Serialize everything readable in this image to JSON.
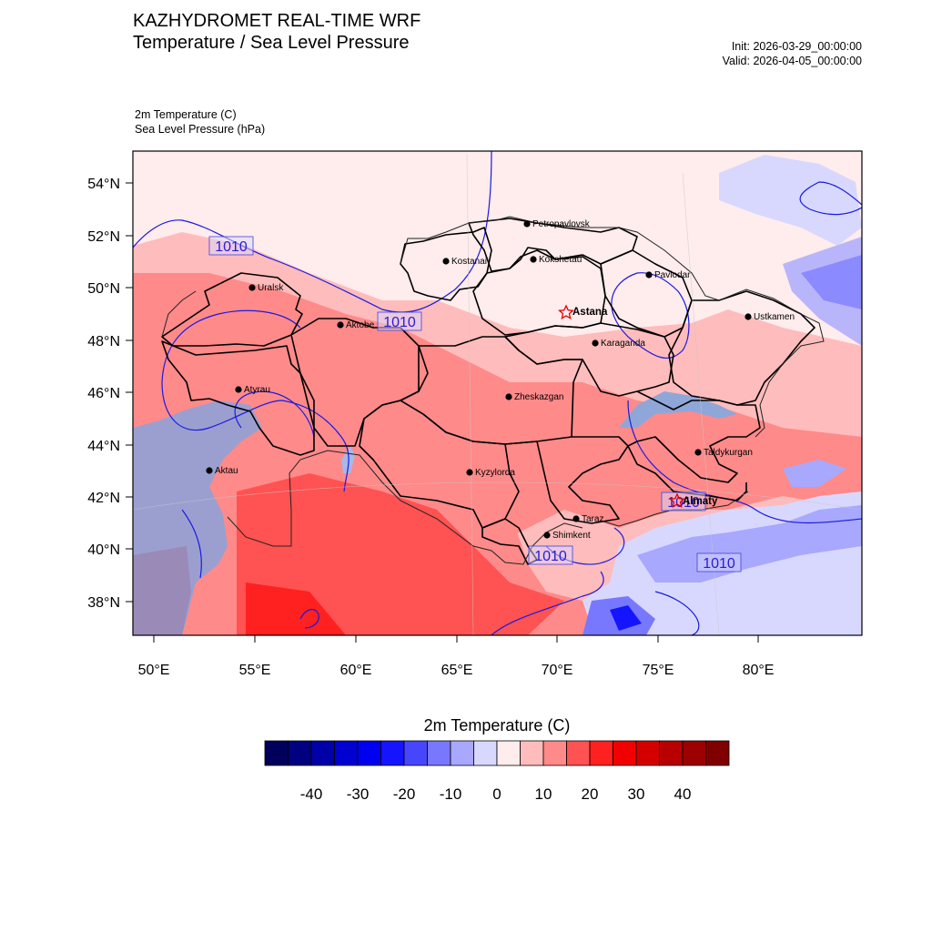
{
  "header": {
    "title": "KAZHYDROMET REAL-TIME WRF",
    "subtitle": "Temperature / Sea Level Pressure",
    "init": "Init: 2026-03-29_00:00:00",
    "valid": "Valid: 2026-04-05_00:00:00"
  },
  "variables": {
    "temp": "2m Temperature   (C)",
    "slp": "Sea Level Pressure   (hPa)"
  },
  "axes": {
    "lat_labels": [
      "54°N",
      "52°N",
      "50°N",
      "48°N",
      "46°N",
      "44°N",
      "42°N",
      "40°N",
      "38°N"
    ],
    "lon_labels": [
      "50°E",
      "55°E",
      "60°E",
      "65°E",
      "70°E",
      "75°E",
      "80°E"
    ]
  },
  "cities": [
    {
      "name": "Petropavlovsk",
      "type": "city"
    },
    {
      "name": "Kostanai",
      "type": "city"
    },
    {
      "name": "Kokshetau",
      "type": "city"
    },
    {
      "name": "Pavlodar",
      "type": "city"
    },
    {
      "name": "Uralsk",
      "type": "city"
    },
    {
      "name": "Aktobe",
      "type": "city"
    },
    {
      "name": "Astana",
      "type": "capital"
    },
    {
      "name": "Ustkamen",
      "type": "city"
    },
    {
      "name": "Karaganda",
      "type": "city"
    },
    {
      "name": "Atyrau",
      "type": "city"
    },
    {
      "name": "Zheskazgan",
      "type": "city"
    },
    {
      "name": "Taldykurgan",
      "type": "city"
    },
    {
      "name": "Aktau",
      "type": "city"
    },
    {
      "name": "Kyzylorda",
      "type": "city"
    },
    {
      "name": "Almaty",
      "type": "capital"
    },
    {
      "name": "Taraz",
      "type": "city"
    },
    {
      "name": "Shimkent",
      "type": "city"
    }
  ],
  "isobar_labels": [
    "1010",
    "1010",
    "1010",
    "1010",
    "1010"
  ],
  "colorbar": {
    "title": "2m Temperature  (C)",
    "labels": [
      "-40",
      "-30",
      "-20",
      "-10",
      "0",
      "10",
      "20",
      "30",
      "40"
    ],
    "colors": [
      "#00005a",
      "#000080",
      "#0000a8",
      "#0000d0",
      "#0000f0",
      "#1414ff",
      "#4646ff",
      "#7878ff",
      "#a8a8ff",
      "#d8d8ff",
      "#ffecec",
      "#ffbcbc",
      "#ff8a8a",
      "#ff5252",
      "#ff2020",
      "#f00000",
      "#d40000",
      "#b80000",
      "#9c0000",
      "#800000"
    ]
  }
}
